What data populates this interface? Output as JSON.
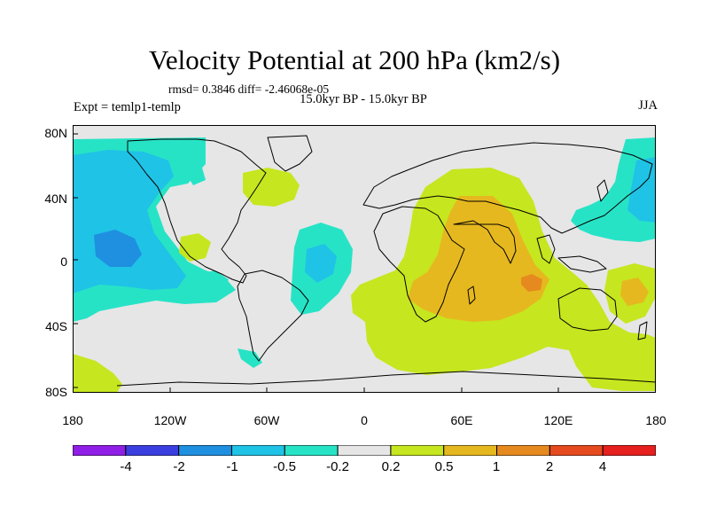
{
  "title": "Velocity Potential at 200 hPa (km2/s)",
  "stats": "rmsd= 0.3846  diff= -2.46068e-05",
  "experiment": "Expt = temlp1-temlp",
  "period": "15.0kyr BP - 15.0kyr BP",
  "season": "JJA",
  "y_axis_labels": [
    "80N",
    "40N",
    "0",
    "40S",
    "80S"
  ],
  "x_axis_labels": [
    "180",
    "120W",
    "60W",
    "0",
    "60E",
    "120E",
    "180"
  ],
  "colorbar": {
    "labels": [
      "-4",
      "-2",
      "-1",
      "-0.5",
      "-0.2",
      "0.2",
      "0.5",
      "1",
      "2",
      "4"
    ],
    "colors": [
      "#8f1fe6",
      "#3b3fe0",
      "#1f8fe0",
      "#1fc3e6",
      "#27e3c6",
      "#e6e6e6",
      "#c6e61f",
      "#e6b81f",
      "#e68a1f",
      "#e64a1f",
      "#e61f1f"
    ]
  },
  "fill_colors": {
    "neutral": "#e6e6e6",
    "neg_0_2": "#27e3c6",
    "neg_0_5": "#1fc3e6",
    "neg_1": "#1f8fe0",
    "pos_0_2": "#c6e61f",
    "pos_0_5": "#e6b81f",
    "pos_1": "#e68a1f"
  }
}
